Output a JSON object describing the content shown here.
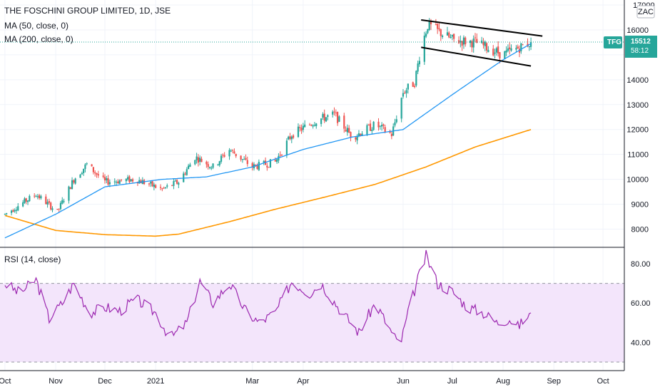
{
  "header": {
    "title": "THE FOSCHINI GROUP LIMITED, 1D, JSE",
    "ma50_label": "MA (50, close, 0)",
    "ma200_label": "MA (200, close, 0)",
    "rsi_label": "RSI (14, close)",
    "currency": "ZAC"
  },
  "price_badge": {
    "symbol": "TFG",
    "price": "15512",
    "countdown": "58:12"
  },
  "colors": {
    "up": "#26a69a",
    "down": "#ef5350",
    "ma50": "#2196f3",
    "ma200": "#ff9800",
    "rsi": "#9c27b0",
    "rsi_band": "#f3e5fb",
    "trendline": "#000000",
    "badge": "#26a69a"
  },
  "chart_data": [
    {
      "type": "candlestick",
      "title": "THE FOSCHINI GROUP LIMITED, 1D, JSE",
      "ylim": [
        7300,
        17200
      ],
      "y_ticks": [
        8000,
        9000,
        10000,
        11000,
        12000,
        13000,
        14000,
        15000,
        16000,
        17000
      ],
      "x_ticks": [
        "Oct",
        "Nov",
        "Dec",
        "2021",
        "Mar",
        "Apr",
        "Jun",
        "Jul",
        "Aug",
        "Sep",
        "Oct"
      ],
      "close_anchors": [
        [
          "2020-10-01",
          8600
        ],
        [
          "2020-10-20",
          9400
        ],
        [
          "2020-11-02",
          8700
        ],
        [
          "2020-11-12",
          10000
        ],
        [
          "2020-11-20",
          10600
        ],
        [
          "2020-12-01",
          9900
        ],
        [
          "2020-12-20",
          10000
        ],
        [
          "2021-01-05",
          9600
        ],
        [
          "2021-01-15",
          9900
        ],
        [
          "2021-01-25",
          10900
        ],
        [
          "2021-02-05",
          10500
        ],
        [
          "2021-02-15",
          11200
        ],
        [
          "2021-03-01",
          10500
        ],
        [
          "2021-03-15",
          10700
        ],
        [
          "2021-03-25",
          11800
        ],
        [
          "2021-04-10",
          12400
        ],
        [
          "2021-04-20",
          12600
        ],
        [
          "2021-05-01",
          11700
        ],
        [
          "2021-05-15",
          12200
        ],
        [
          "2021-05-25",
          11800
        ],
        [
          "2021-06-01",
          13500
        ],
        [
          "2021-06-08",
          13900
        ],
        [
          "2021-06-12",
          15300
        ],
        [
          "2021-06-16",
          16200
        ],
        [
          "2021-07-01",
          15600
        ],
        [
          "2021-07-15",
          15500
        ],
        [
          "2021-08-01",
          15000
        ],
        [
          "2021-08-18",
          15512
        ]
      ],
      "ma50_anchors": [
        [
          "2020-10-01",
          7650
        ],
        [
          "2020-11-01",
          8600
        ],
        [
          "2020-12-01",
          9700
        ],
        [
          "2021-01-05",
          10000
        ],
        [
          "2021-02-01",
          10100
        ],
        [
          "2021-03-01",
          10500
        ],
        [
          "2021-04-01",
          11200
        ],
        [
          "2021-05-01",
          11700
        ],
        [
          "2021-06-01",
          12000
        ],
        [
          "2021-07-01",
          13400
        ],
        [
          "2021-08-01",
          14800
        ],
        [
          "2021-08-18",
          15450
        ]
      ],
      "ma200_anchors": [
        [
          "2020-10-01",
          8550
        ],
        [
          "2020-11-01",
          7950
        ],
        [
          "2020-12-01",
          7780
        ],
        [
          "2021-01-01",
          7720
        ],
        [
          "2021-01-15",
          7800
        ],
        [
          "2021-02-15",
          8300
        ],
        [
          "2021-03-15",
          8800
        ],
        [
          "2021-04-15",
          9300
        ],
        [
          "2021-05-15",
          9800
        ],
        [
          "2021-06-15",
          10500
        ],
        [
          "2021-07-15",
          11300
        ],
        [
          "2021-08-18",
          12000
        ]
      ],
      "trendlines": [
        {
          "name": "channel-upper",
          "from": [
            "2021-06-12",
            16400
          ],
          "to": [
            "2021-08-25",
            15750
          ]
        },
        {
          "name": "channel-lower",
          "from": [
            "2021-06-12",
            15300
          ],
          "to": [
            "2021-08-18",
            14550
          ]
        }
      ],
      "last_price": 15512
    },
    {
      "type": "line",
      "title": "RSI (14, close)",
      "ylim": [
        26,
        88
      ],
      "y_ticks": [
        "80.00",
        "60.00",
        "40.00"
      ],
      "y_tick_values": [
        80,
        60,
        40
      ],
      "band": [
        30,
        70
      ],
      "anchors": [
        [
          "2020-10-01",
          70
        ],
        [
          "2020-10-10",
          65
        ],
        [
          "2020-10-20",
          72
        ],
        [
          "2020-10-28",
          52
        ],
        [
          "2020-11-05",
          60
        ],
        [
          "2020-11-12",
          70
        ],
        [
          "2020-11-22",
          55
        ],
        [
          "2020-12-01",
          58
        ],
        [
          "2020-12-10",
          56
        ],
        [
          "2020-12-20",
          62
        ],
        [
          "2021-01-01",
          55
        ],
        [
          "2021-01-10",
          42
        ],
        [
          "2021-01-20",
          50
        ],
        [
          "2021-01-28",
          71
        ],
        [
          "2021-02-05",
          60
        ],
        [
          "2021-02-15",
          70
        ],
        [
          "2021-02-25",
          56
        ],
        [
          "2021-03-05",
          50
        ],
        [
          "2021-03-15",
          55
        ],
        [
          "2021-03-25",
          71
        ],
        [
          "2021-04-05",
          65
        ],
        [
          "2021-04-12",
          70
        ],
        [
          "2021-04-25",
          55
        ],
        [
          "2021-05-05",
          45
        ],
        [
          "2021-05-15",
          60
        ],
        [
          "2021-05-25",
          45
        ],
        [
          "2021-05-30",
          38
        ],
        [
          "2021-06-05",
          58
        ],
        [
          "2021-06-10",
          72
        ],
        [
          "2021-06-15",
          84
        ],
        [
          "2021-06-22",
          70
        ],
        [
          "2021-07-01",
          66
        ],
        [
          "2021-07-10",
          58
        ],
        [
          "2021-07-20",
          55
        ],
        [
          "2021-07-28",
          50
        ],
        [
          "2021-08-05",
          52
        ],
        [
          "2021-08-10",
          48
        ],
        [
          "2021-08-18",
          55
        ]
      ]
    }
  ]
}
